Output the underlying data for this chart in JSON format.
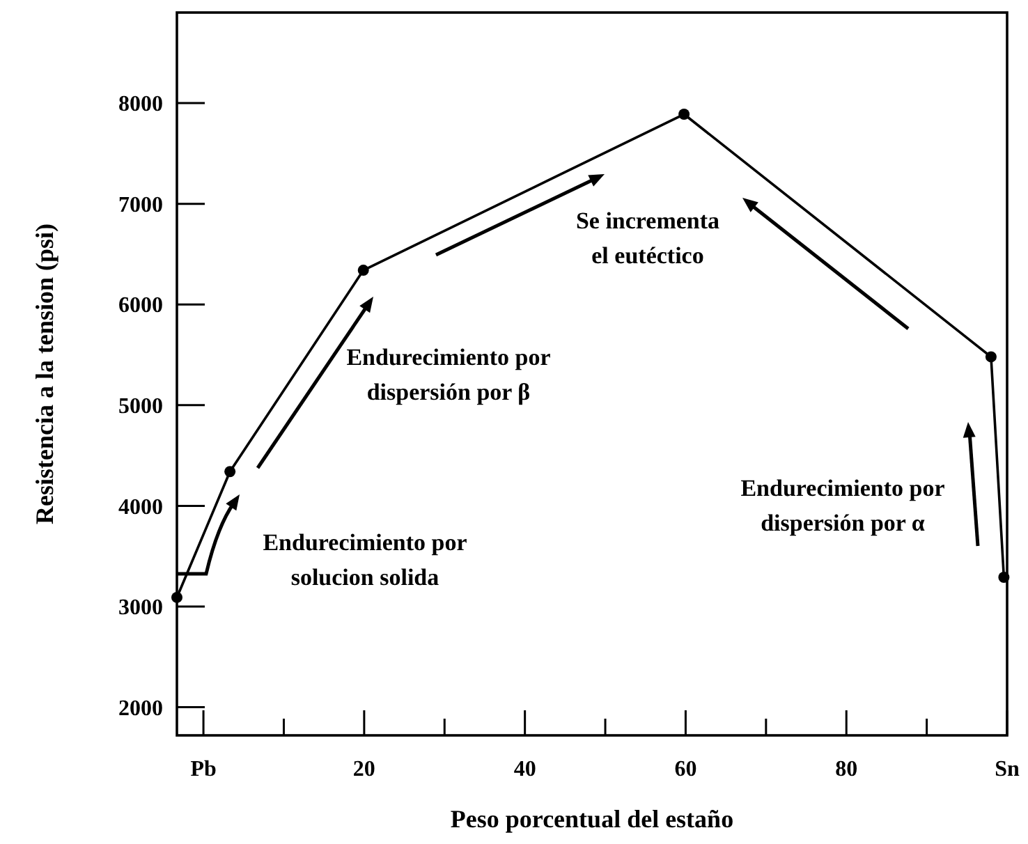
{
  "chart_data": {
    "type": "line",
    "xlabel": "Peso porcentual del estaño",
    "ylabel": "Resistencia a la tension (psi)",
    "x": [
      -3.3,
      3.3,
      19.9,
      59.8,
      98,
      99.6
    ],
    "series": [
      {
        "color": "#000000",
        "values": [
          3090,
          4340,
          6340,
          7890,
          5480,
          3290
        ]
      }
    ],
    "marker": "circle",
    "line_style": "solid",
    "xlim": [
      -3.3,
      100
    ],
    "ylim": [
      1720,
      8900
    ],
    "xticks": [
      {
        "value": 0,
        "label": "Pb"
      },
      {
        "value": 10,
        "label": null
      },
      20,
      {
        "value": 30,
        "label": null
      },
      40,
      {
        "value": 50,
        "label": null
      },
      60,
      {
        "value": 70,
        "label": null
      },
      80,
      {
        "value": 90,
        "label": null
      },
      {
        "value": 100,
        "label": "Sn"
      }
    ],
    "yticks": [
      2000,
      3000,
      4000,
      5000,
      6000,
      7000,
      8000
    ],
    "annotations": [
      "Endurecimiento por\nsolucion solida",
      "Endurecimiento por\ndispersión por β",
      "Se incrementa\nel eutéctico",
      "Endurecimiento por\ndispersión por α"
    ]
  }
}
